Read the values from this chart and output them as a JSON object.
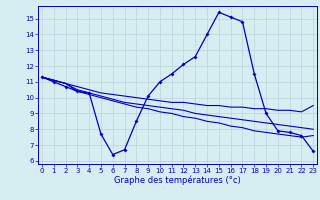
{
  "xlabel": "Graphe des températures (°c)",
  "x_ticks": [
    0,
    1,
    2,
    3,
    4,
    5,
    6,
    7,
    8,
    9,
    10,
    11,
    12,
    13,
    14,
    15,
    16,
    17,
    18,
    19,
    20,
    21,
    22,
    23
  ],
  "y_ticks": [
    6,
    7,
    8,
    9,
    10,
    11,
    12,
    13,
    14,
    15
  ],
  "ylim": [
    5.8,
    15.8
  ],
  "xlim": [
    -0.3,
    23.3
  ],
  "background_color": "#d6eef2",
  "grid_color": "#b8d4db",
  "line_color": "#0000bb",
  "series": [
    [
      11.3,
      11.0,
      10.7,
      10.4,
      10.3,
      7.7,
      6.4,
      6.7,
      8.5,
      10.1,
      11.0,
      11.5,
      12.1,
      12.6,
      14.0,
      15.4,
      15.1,
      14.8,
      11.5,
      9.0,
      7.9,
      7.8,
      7.6,
      6.6
    ],
    [
      11.3,
      11.1,
      10.9,
      10.7,
      10.5,
      10.3,
      10.2,
      10.1,
      10.0,
      9.9,
      9.8,
      9.7,
      9.7,
      9.6,
      9.5,
      9.5,
      9.4,
      9.4,
      9.3,
      9.3,
      9.2,
      9.2,
      9.1,
      9.5
    ],
    [
      11.3,
      11.1,
      10.9,
      10.5,
      10.3,
      10.1,
      9.9,
      9.7,
      9.6,
      9.5,
      9.4,
      9.3,
      9.2,
      9.0,
      8.9,
      8.8,
      8.7,
      8.6,
      8.5,
      8.4,
      8.3,
      8.2,
      8.1,
      8.0
    ],
    [
      11.3,
      11.1,
      10.9,
      10.4,
      10.2,
      10.0,
      9.8,
      9.6,
      9.4,
      9.3,
      9.1,
      9.0,
      8.8,
      8.7,
      8.5,
      8.4,
      8.2,
      8.1,
      7.9,
      7.8,
      7.7,
      7.6,
      7.5,
      7.6
    ]
  ]
}
